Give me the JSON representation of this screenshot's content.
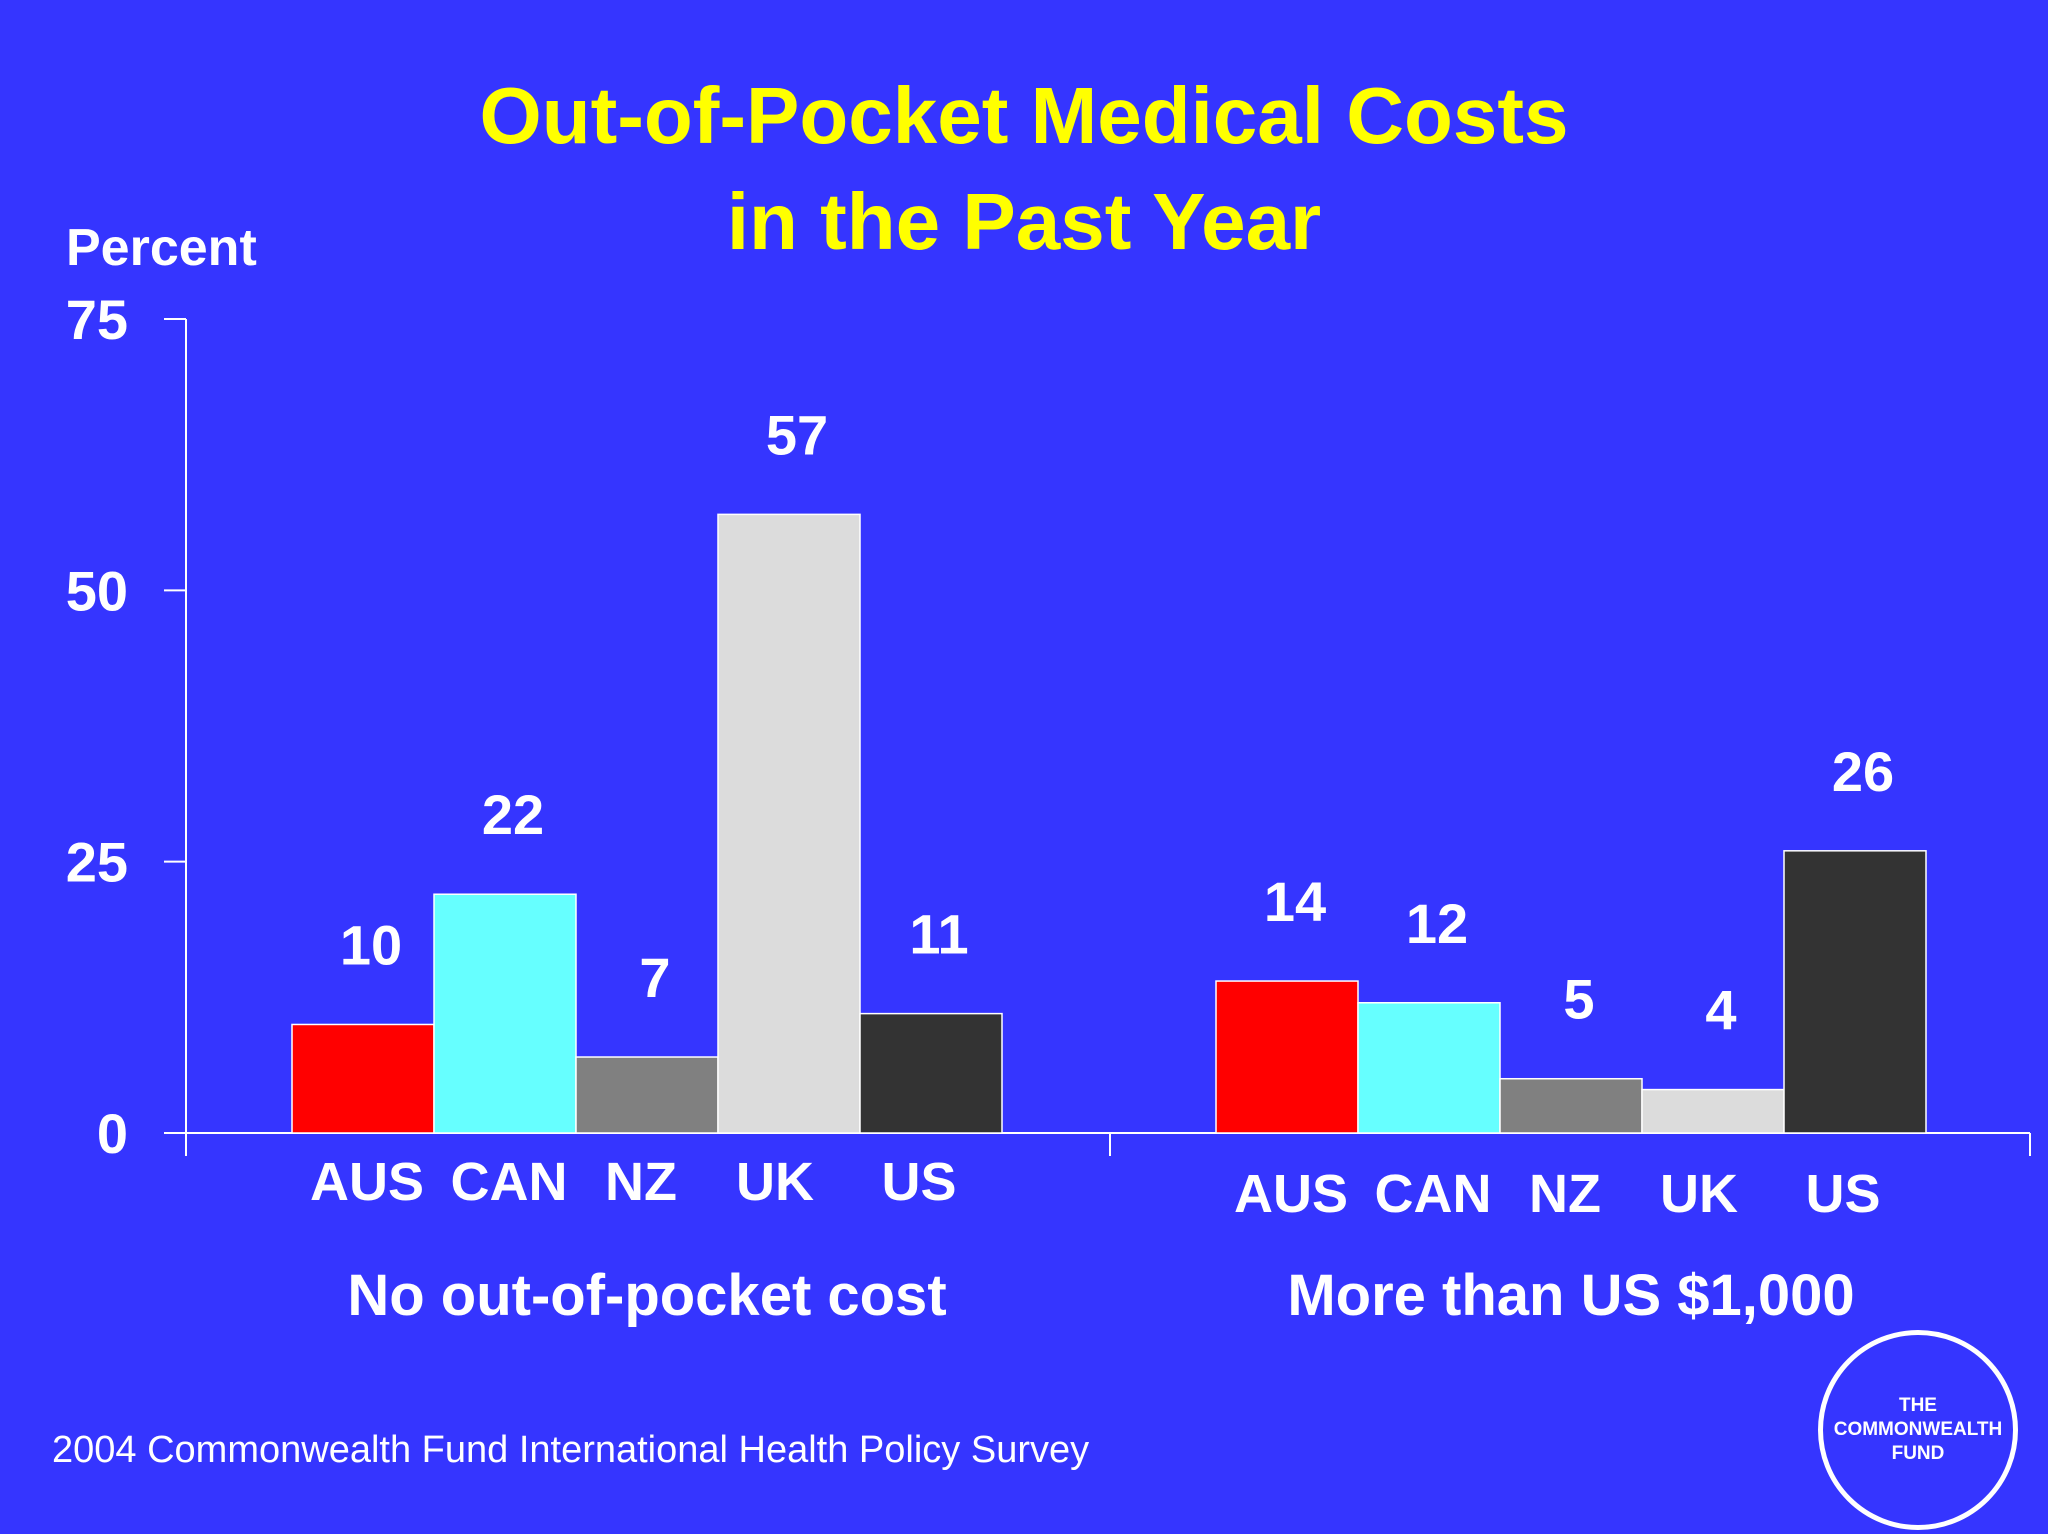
{
  "title_line1": "Out-of-Pocket Medical Costs",
  "title_line2": "in the Past Year",
  "footer": "2004 Commonwealth Fund International Health Policy Survey",
  "logo_text": "THE\nCOMMONWEALTH\nFUND",
  "colors": {
    "background": "#3535ff",
    "title": "#ffff00",
    "text": "#ffffff",
    "AUS": "#ff0000",
    "CAN": "#66ffff",
    "NZ": "#808080",
    "UK": "#dcdcdc",
    "US": "#333333"
  },
  "chart_data": {
    "type": "bar",
    "ylabel": "Percent",
    "ylim": [
      0,
      75
    ],
    "yticks": [
      0,
      25,
      50,
      75
    ],
    "categories": [
      "AUS",
      "CAN",
      "NZ",
      "UK",
      "US"
    ],
    "groups": [
      {
        "name": "No out-of-pocket cost",
        "values": [
          10,
          22,
          7,
          57,
          11
        ]
      },
      {
        "name": "More than US $1,000",
        "values": [
          14,
          12,
          5,
          4,
          26
        ]
      }
    ],
    "legend": "none",
    "grid": false,
    "data_labels": true
  }
}
